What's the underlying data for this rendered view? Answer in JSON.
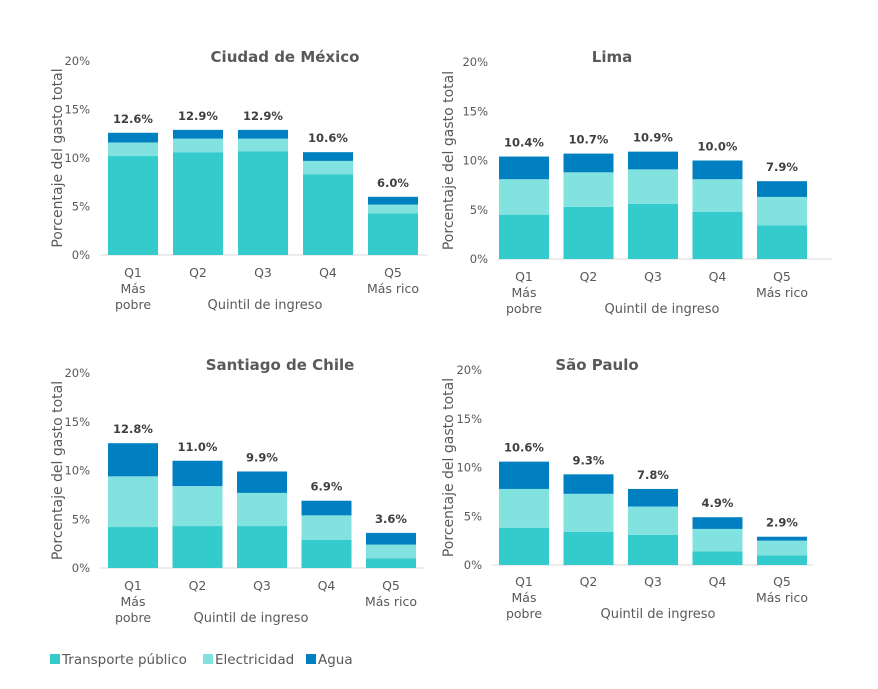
{
  "legend": {
    "placement": "bottom-left",
    "entries": [
      "Transporte público",
      "Electricidad",
      "Agua"
    ]
  },
  "colors": {
    "Transporte público": "#33CBCB",
    "Electricidad": "#82E2DF",
    "Agua": "#0080C0"
  },
  "chart_data": [
    {
      "type": "bar",
      "stacked": true,
      "title": "Ciudad de México",
      "ylabel": "Porcentaje del gasto total",
      "xlabel": "Quintil de ingreso",
      "categories": [
        [
          "Q1",
          "Más",
          "pobre"
        ],
        [
          "Q2"
        ],
        [
          "Q3"
        ],
        [
          "Q4"
        ],
        [
          "Q5",
          "Más rico"
        ]
      ],
      "yticks": [
        "0%",
        "5%",
        "10%",
        "15%",
        "20%"
      ],
      "ylim": [
        0,
        20
      ],
      "series": [
        {
          "name": "Transporte público",
          "values": [
            10.2,
            10.6,
            10.7,
            8.3,
            4.3
          ]
        },
        {
          "name": "Electricidad",
          "values": [
            1.4,
            1.4,
            1.3,
            1.4,
            0.9
          ]
        },
        {
          "name": "Agua",
          "values": [
            1.0,
            0.9,
            0.9,
            0.9,
            0.8
          ]
        }
      ],
      "totals": [
        "12.6%",
        "12.9%",
        "12.9%",
        "10.6%",
        "6.0%"
      ]
    },
    {
      "type": "bar",
      "stacked": true,
      "title": "Lima",
      "ylabel": "Porcentaje del gasto total",
      "xlabel": "Quintil de ingreso",
      "categories": [
        [
          "Q1",
          "Más",
          "pobre"
        ],
        [
          "Q2"
        ],
        [
          "Q3"
        ],
        [
          "Q4"
        ],
        [
          "Q5",
          "Más rico"
        ]
      ],
      "yticks": [
        "0%",
        "5%",
        "10%",
        "15%",
        "20%"
      ],
      "ylim": [
        0,
        20
      ],
      "series": [
        {
          "name": "Transporte público",
          "values": [
            4.5,
            5.3,
            5.6,
            4.8,
            3.4
          ]
        },
        {
          "name": "Electricidad",
          "values": [
            3.6,
            3.5,
            3.5,
            3.3,
            2.9
          ]
        },
        {
          "name": "Agua",
          "values": [
            2.3,
            1.9,
            1.8,
            1.9,
            1.6
          ]
        }
      ],
      "totals": [
        "10.4%",
        "10.7%",
        "10.9%",
        "10.0%",
        "7.9%"
      ]
    },
    {
      "type": "bar",
      "stacked": true,
      "title": "Santiago de Chile",
      "ylabel": "Porcentaje del gasto total",
      "xlabel": "Quintil de ingreso",
      "categories": [
        [
          "Q1",
          "Más",
          "pobre"
        ],
        [
          "Q2"
        ],
        [
          "Q3"
        ],
        [
          "Q4"
        ],
        [
          "Q5",
          "Más rico"
        ]
      ],
      "yticks": [
        "0%",
        "5%",
        "10%",
        "15%",
        "20%"
      ],
      "ylim": [
        0,
        20
      ],
      "series": [
        {
          "name": "Transporte público",
          "values": [
            4.2,
            4.3,
            4.3,
            2.9,
            1.0
          ]
        },
        {
          "name": "Electricidad",
          "values": [
            5.2,
            4.1,
            3.4,
            2.5,
            1.4
          ]
        },
        {
          "name": "Agua",
          "values": [
            3.4,
            2.6,
            2.2,
            1.5,
            1.2
          ]
        }
      ],
      "totals": [
        "12.8%",
        "11.0%",
        "9.9%",
        "6.9%",
        "3.6%"
      ]
    },
    {
      "type": "bar",
      "stacked": true,
      "title": "São Paulo",
      "ylabel": "Porcentaje del gasto total",
      "xlabel": "Quintil de ingreso",
      "categories": [
        [
          "Q1",
          "Más",
          "pobre"
        ],
        [
          "Q2"
        ],
        [
          "Q3"
        ],
        [
          "Q4"
        ],
        [
          "Q5",
          "Más rico"
        ]
      ],
      "yticks": [
        "0%",
        "5%",
        "10%",
        "15%",
        "20%"
      ],
      "ylim": [
        0,
        20
      ],
      "series": [
        {
          "name": "Transporte público",
          "values": [
            3.8,
            3.4,
            3.1,
            1.4,
            1.0
          ]
        },
        {
          "name": "Electricidad",
          "values": [
            4.0,
            3.9,
            2.9,
            2.3,
            1.5
          ]
        },
        {
          "name": "Agua",
          "values": [
            2.8,
            2.0,
            1.8,
            1.2,
            0.4
          ]
        }
      ],
      "totals": [
        "10.6%",
        "9.3%",
        "7.8%",
        "4.9%",
        "2.9%"
      ]
    }
  ]
}
